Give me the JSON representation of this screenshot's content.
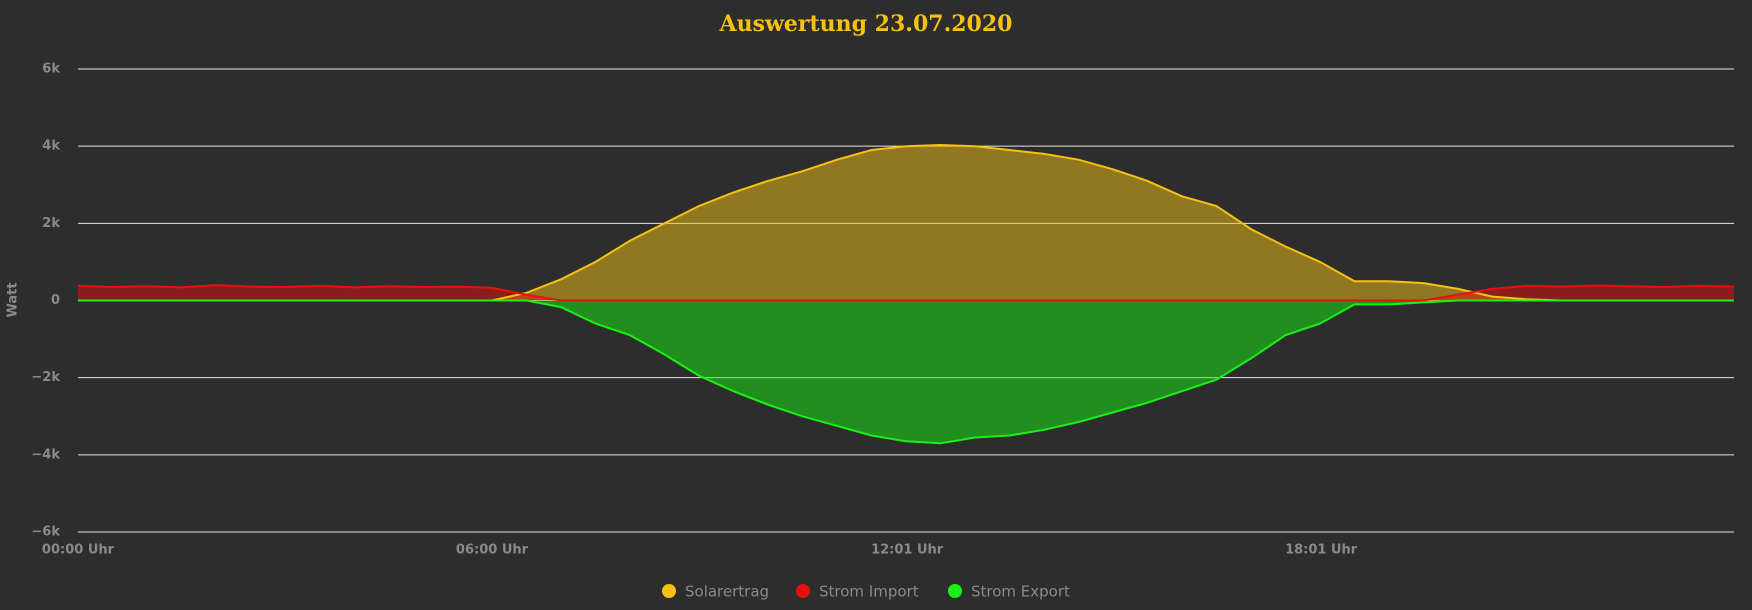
{
  "chart_data": {
    "type": "area",
    "title": "Auswertung 23.07.2020",
    "y_label": "Watt",
    "x": [
      0,
      0.5,
      1,
      1.5,
      2,
      2.5,
      3,
      3.5,
      4,
      4.5,
      5,
      5.5,
      6,
      6.5,
      7,
      7.5,
      8,
      8.5,
      9,
      9.5,
      10,
      10.5,
      11,
      11.5,
      12,
      12.5,
      13,
      13.5,
      14,
      14.5,
      15,
      15.5,
      16,
      16.5,
      17,
      17.5,
      18,
      18.5,
      19,
      19.5,
      20,
      20.5,
      21,
      21.5,
      22,
      22.5,
      23,
      23.5,
      24
    ],
    "xlim": [
      0,
      24
    ],
    "xticks": [
      {
        "value": 0,
        "label": "00:00 Uhr"
      },
      {
        "value": 6,
        "label": "06:00 Uhr"
      },
      {
        "value": 12.0167,
        "label": "12:01 Uhr"
      },
      {
        "value": 18.0167,
        "label": "18:01 Uhr"
      }
    ],
    "ylim": [
      -6000,
      6000
    ],
    "yticks": [
      {
        "value": -6000,
        "label": "−6k"
      },
      {
        "value": -4000,
        "label": "−4k"
      },
      {
        "value": -2000,
        "label": "−2k"
      },
      0,
      {
        "value": 2000,
        "label": "2k"
      },
      {
        "value": 4000,
        "label": "4k"
      },
      {
        "value": 6000,
        "label": "6k"
      }
    ],
    "grid": true,
    "legend": "bottom",
    "series": [
      {
        "name": "Solarertrag",
        "color": "#f5c211",
        "values": [
          0,
          0,
          0,
          0,
          0,
          0,
          0,
          0,
          0,
          0,
          0,
          0,
          0,
          200,
          550,
          1000,
          1550,
          2000,
          2450,
          2800,
          3100,
          3350,
          3650,
          3900,
          4000,
          4030,
          4000,
          3900,
          3800,
          3650,
          3400,
          3100,
          2700,
          2450,
          1850,
          1400,
          1000,
          500,
          500,
          450,
          300,
          100,
          30,
          0,
          0,
          0,
          0,
          0,
          0
        ]
      },
      {
        "name": "Strom Import",
        "color": "#e8100e",
        "values": [
          380,
          350,
          370,
          340,
          400,
          360,
          350,
          380,
          340,
          370,
          350,
          360,
          330,
          150,
          0,
          0,
          0,
          0,
          0,
          0,
          0,
          0,
          0,
          0,
          0,
          0,
          0,
          0,
          0,
          0,
          0,
          0,
          0,
          0,
          0,
          0,
          0,
          0,
          0,
          0,
          150,
          300,
          380,
          360,
          390,
          370,
          350,
          380,
          360
        ]
      },
      {
        "name": "Strom Export",
        "color": "#19f014",
        "values": [
          0,
          0,
          0,
          0,
          0,
          0,
          0,
          0,
          0,
          0,
          0,
          0,
          0,
          0,
          -170,
          -600,
          -900,
          -1400,
          -1950,
          -2350,
          -2700,
          -3000,
          -3250,
          -3500,
          -3650,
          -3700,
          -3550,
          -3500,
          -3350,
          -3150,
          -2900,
          -2650,
          -2350,
          -2050,
          -1500,
          -900,
          -600,
          -100,
          -100,
          -50,
          0,
          0,
          0,
          0,
          0,
          0,
          0,
          0,
          0
        ]
      }
    ]
  }
}
